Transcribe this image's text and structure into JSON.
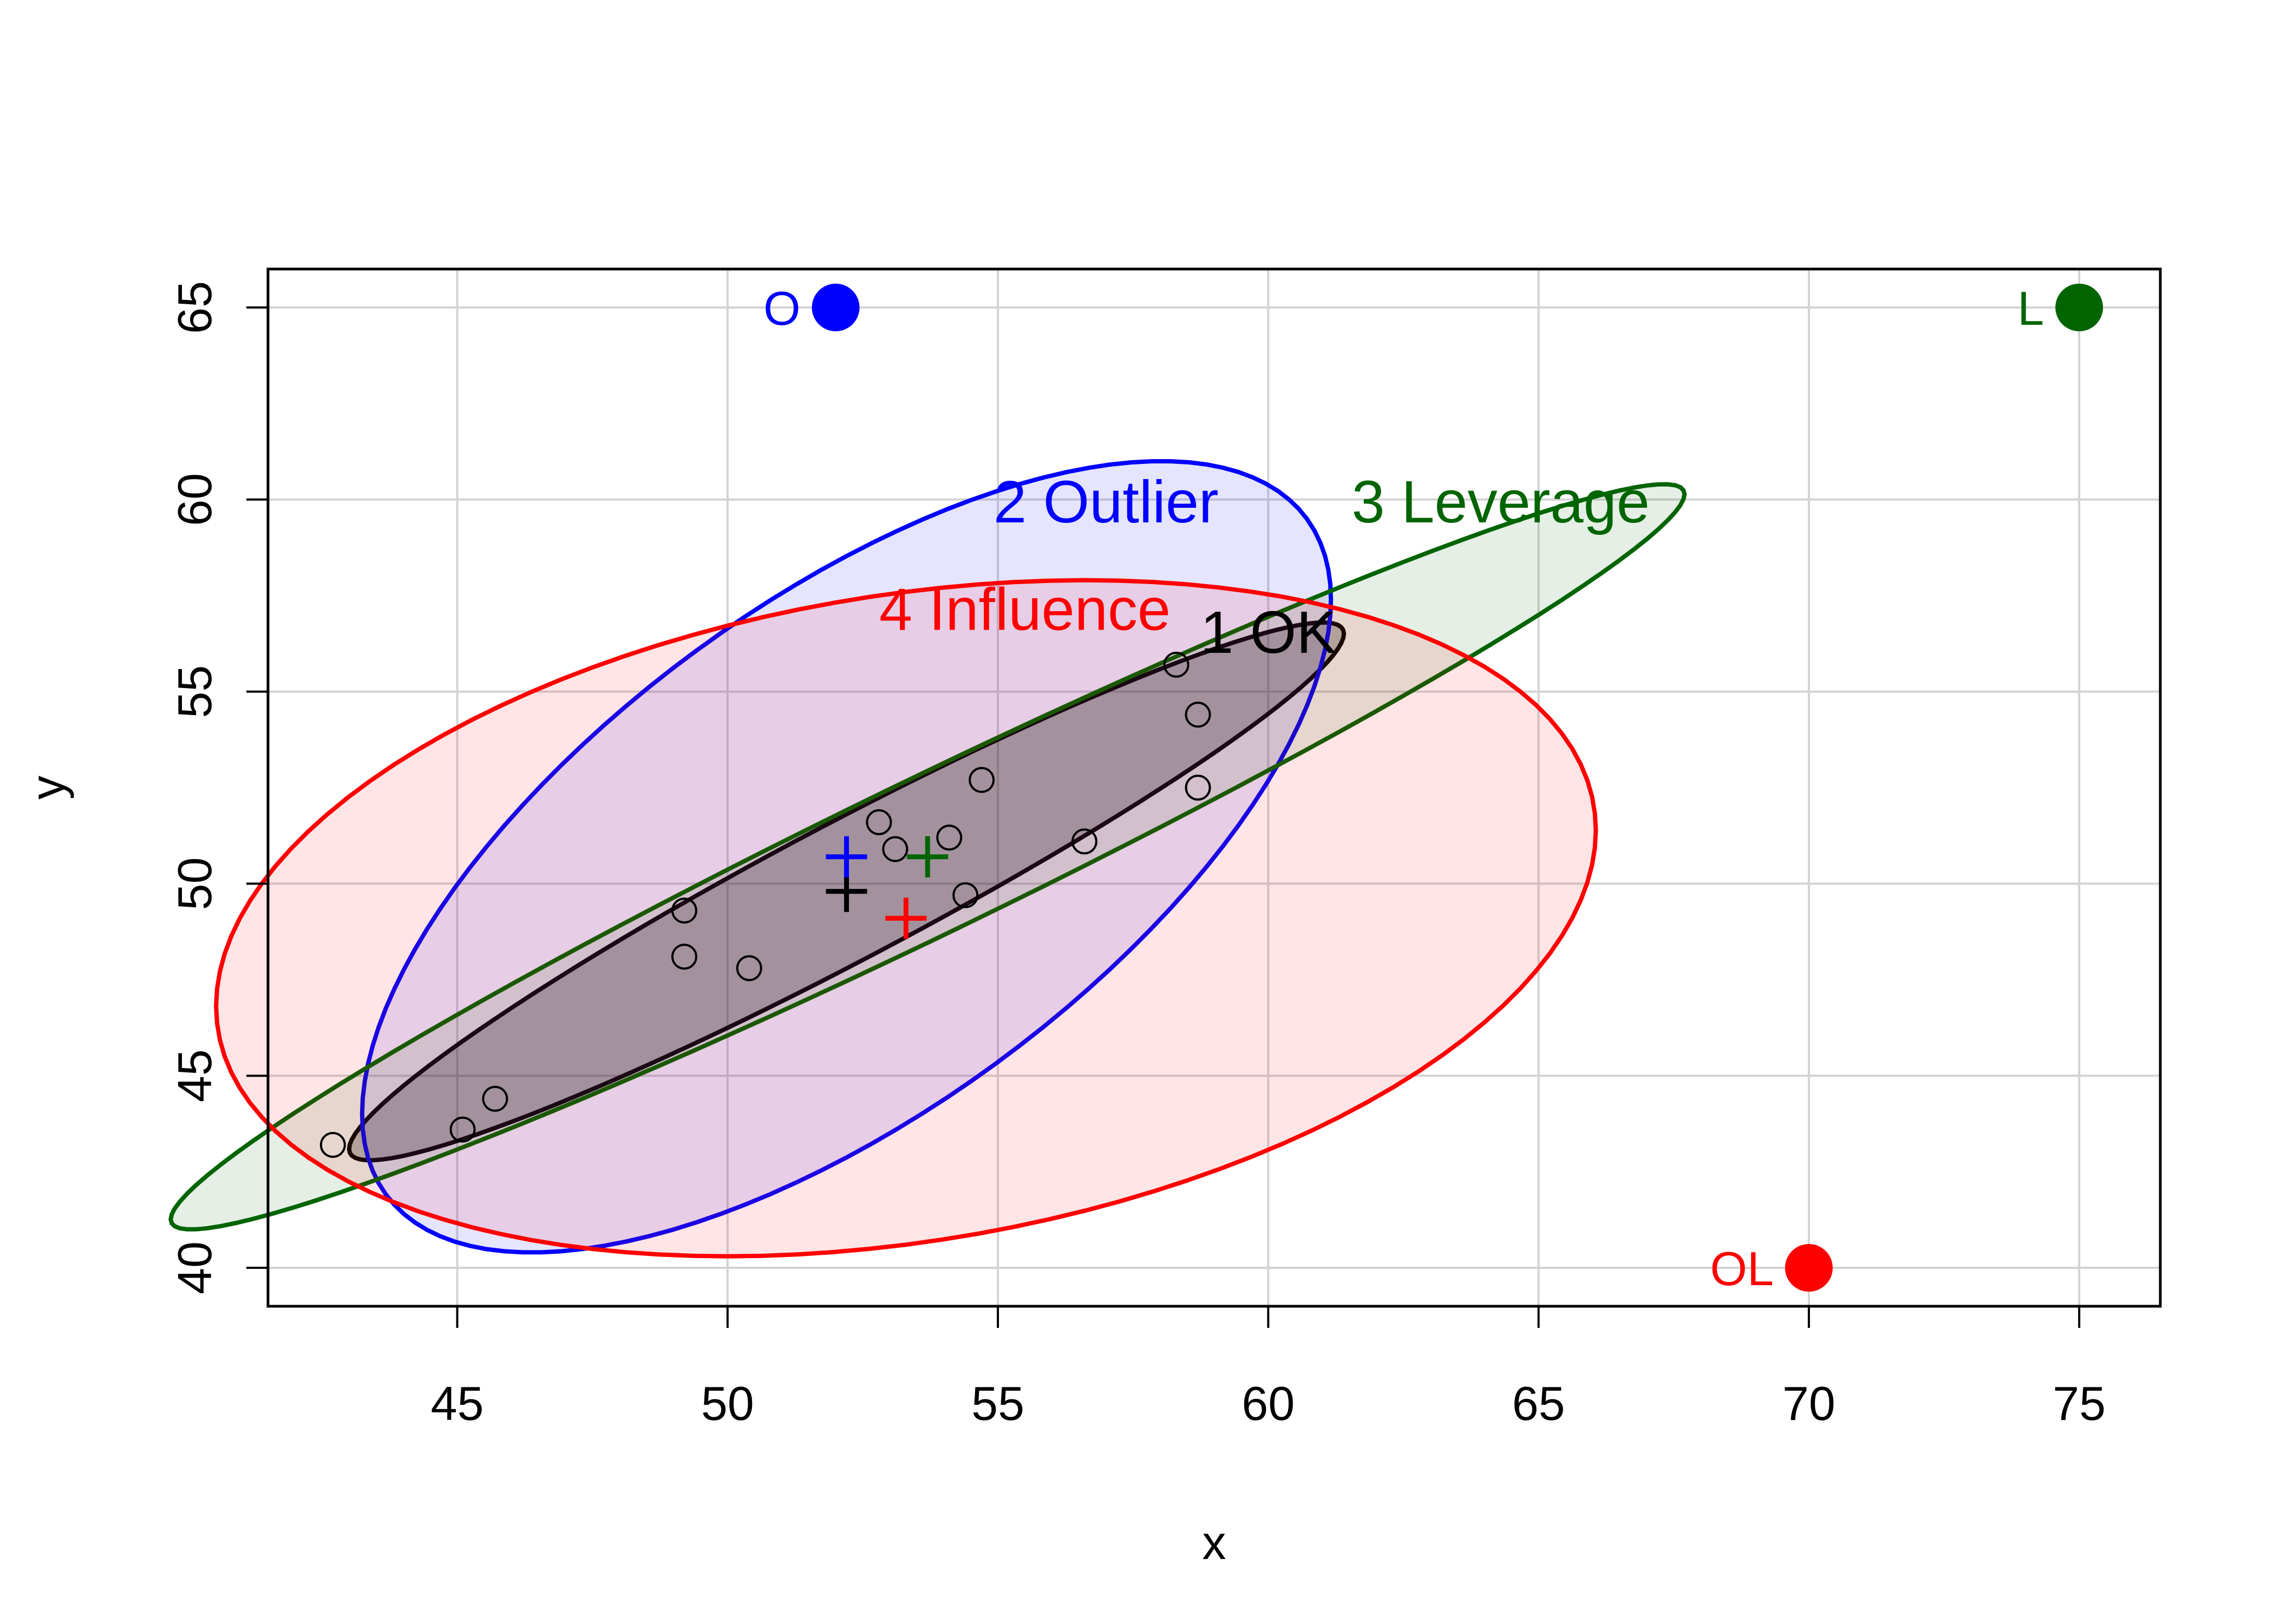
{
  "chart_data": {
    "type": "scatter",
    "xlabel": "x",
    "ylabel": "y",
    "xlim": [
      41.5,
      76.5
    ],
    "ylim": [
      39,
      66
    ],
    "grid": true,
    "x_ticks": [
      45,
      50,
      55,
      60,
      65,
      70,
      75
    ],
    "y_ticks": [
      40,
      45,
      50,
      55,
      60,
      65
    ],
    "points": {
      "x": [
        42.7,
        45.1,
        45.7,
        49.2,
        49.2,
        50.4,
        52.8,
        53.1,
        54.1,
        54.4,
        54.7,
        56.6,
        58.3,
        58.7,
        58.7
      ],
      "y": [
        43.2,
        43.6,
        44.4,
        49.3,
        48.1,
        47.8,
        51.6,
        50.9,
        51.2,
        49.7,
        52.7,
        51.1,
        55.7,
        54.4,
        52.5
      ]
    },
    "added_points": [
      {
        "label": "O",
        "x": 52,
        "y": 65,
        "color": "#0000ff"
      },
      {
        "label": "L",
        "x": 75,
        "y": 65,
        "color": "#006400"
      },
      {
        "label": "OL",
        "x": 70,
        "y": 40,
        "color": "#ff0000"
      }
    ],
    "ellipses": [
      {
        "label": "1 OK",
        "color": "#000000",
        "fill": "rgba(0,0,0,0.25)",
        "cx": 52.2,
        "cy": 49.8,
        "sx": 4.6,
        "sy": 3.5,
        "r": 0.958,
        "label_x": 60,
        "label_y": 56.5
      },
      {
        "label": "2 Outlier",
        "color": "#0000ff",
        "fill": "rgba(0,0,255,0.10)",
        "cx": 52.2,
        "cy": 50.7,
        "sx": 4.48,
        "sy": 5.15,
        "r": 0.65,
        "label_x": 57,
        "label_y": 59.9
      },
      {
        "label": "3 Leverage",
        "color": "#006400",
        "fill": "rgba(0,100,0,0.10)",
        "cx": 53.7,
        "cy": 50.7,
        "sx": 7.0,
        "sy": 4.85,
        "r": 0.973,
        "label_x": 64.3,
        "label_y": 59.9
      },
      {
        "label": "4 Influence",
        "color": "#ff0000",
        "fill": "rgba(255,0,0,0.10)",
        "cx": 53.3,
        "cy": 49.1,
        "sx": 6.38,
        "sy": 4.4,
        "r": 0.26,
        "label_x": 55.5,
        "label_y": 57.1
      }
    ]
  }
}
